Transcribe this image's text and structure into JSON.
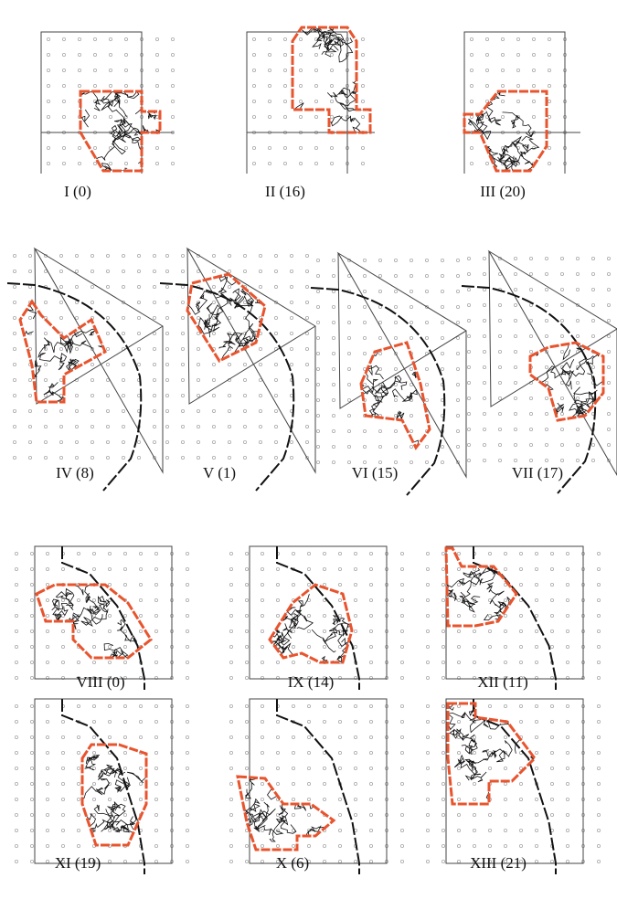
{
  "panels": [
    {
      "label": "I (0)"
    },
    {
      "label": "II (16)"
    },
    {
      "label": "III (20)"
    },
    {
      "label": "IV (8)"
    },
    {
      "label": "V (1)"
    },
    {
      "label": "VI (15)"
    },
    {
      "label": "VII (17)"
    },
    {
      "label": "VIII (0)"
    },
    {
      "label": "IX (14)"
    },
    {
      "label": "XII (11)"
    },
    {
      "label": "XI (19)"
    },
    {
      "label": "X (6)"
    },
    {
      "label": "XIII (21)"
    }
  ]
}
